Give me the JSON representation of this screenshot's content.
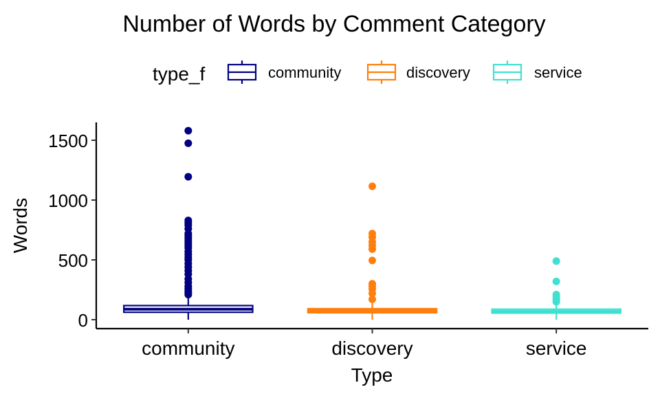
{
  "chart_data": {
    "type": "box",
    "title": "Number of Words by Comment Category",
    "xlabel": "Type",
    "ylabel": "Words",
    "ylim": [
      -80,
      1650
    ],
    "yticks": [
      0,
      500,
      1000,
      1500
    ],
    "categories": [
      "community",
      "discovery",
      "service"
    ],
    "legend": {
      "title": "type_f",
      "placement": "top",
      "entries": [
        "community",
        "discovery",
        "service"
      ]
    },
    "grid": false,
    "colors": {
      "community": "#000080",
      "discovery": "#FF7F0E",
      "service": "#40E0D0"
    },
    "series": [
      {
        "name": "community",
        "box": {
          "whisker_low": 0,
          "q1": 62,
          "median": 88,
          "q3": 118,
          "whisker_high": 200
        },
        "outliers": [
          210,
          225,
          240,
          260,
          280,
          310,
          340,
          380,
          410,
          440,
          470,
          500,
          520,
          545,
          570,
          600,
          620,
          640,
          660,
          680,
          700,
          720,
          760,
          790,
          810,
          830,
          1195,
          1475,
          1580
        ]
      },
      {
        "name": "discovery",
        "box": {
          "whisker_low": 0,
          "q1": 58,
          "median": 75,
          "q3": 92,
          "whisker_high": 140
        },
        "outliers": [
          170,
          220,
          255,
          280,
          300,
          495,
          590,
          620,
          650,
          690,
          720,
          1115
        ]
      },
      {
        "name": "service",
        "box": {
          "whisker_low": 0,
          "q1": 55,
          "median": 70,
          "q3": 88,
          "whisker_high": 130
        },
        "outliers": [
          150,
          170,
          190,
          210,
          320,
          490
        ]
      }
    ]
  }
}
